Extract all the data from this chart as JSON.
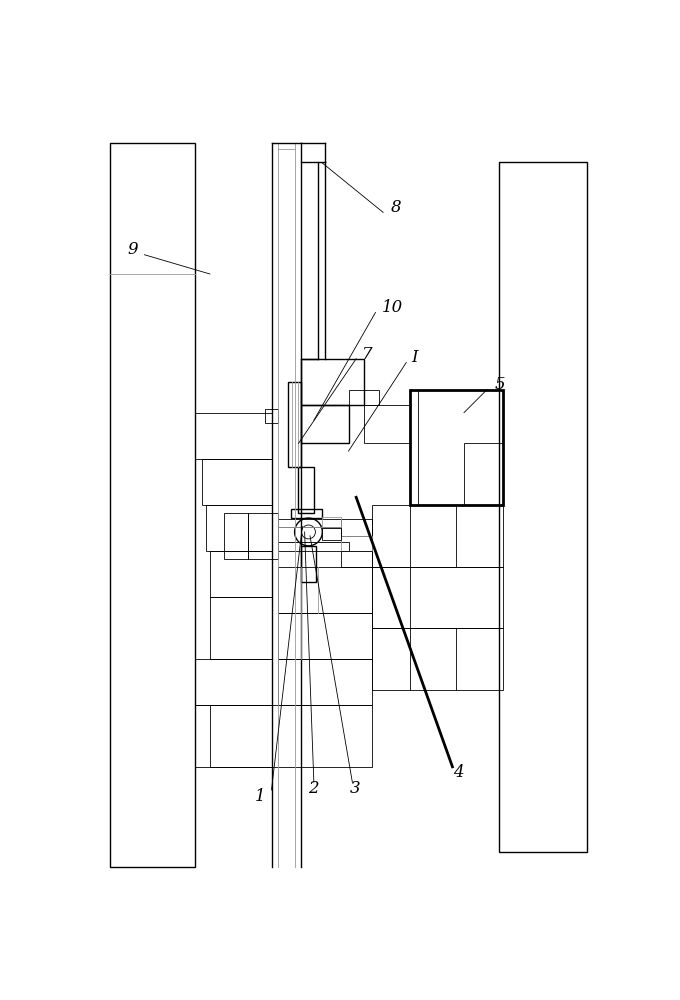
{
  "bg_color": "#ffffff",
  "lc": "#000000",
  "gc": "#999999",
  "tlw": 0.6,
  "mlw": 1.0,
  "thk": 2.0
}
